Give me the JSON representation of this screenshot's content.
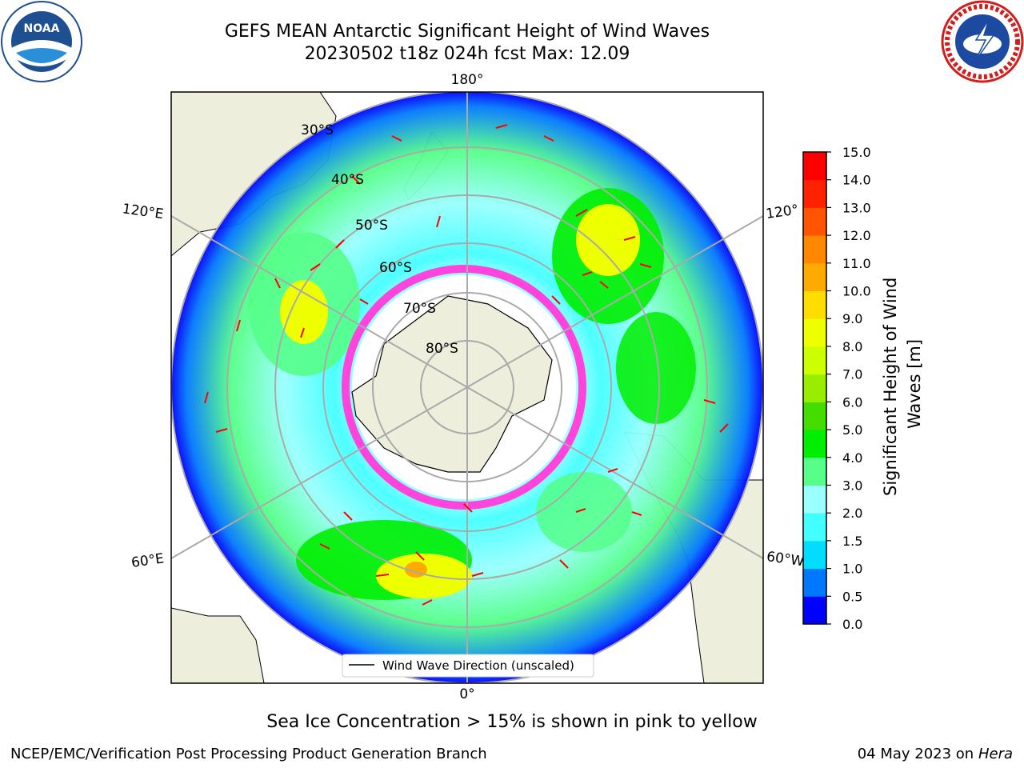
{
  "title": {
    "line1": "GEFS MEAN Antarctic Significant Height of Wind Waves",
    "line2": "20230502 t18z 024h fcst   Max: 12.09"
  },
  "map": {
    "projection": "south-polar-stereographic",
    "longitude_labels": [
      "180°",
      "120°E",
      "120°",
      "60°E",
      "60°W",
      "0°"
    ],
    "latitude_labels": [
      "30°S",
      "40°S",
      "50°S",
      "60°S",
      "70°S",
      "80°S"
    ],
    "legend": "Wind Wave Direction (unscaled)",
    "colors": {
      "land": "#eeeedc",
      "sea_ice": "#ff44dd",
      "arrows": "#ff0000"
    }
  },
  "colorbar": {
    "label": "Significant Height of Wind Waves [m]",
    "ticks": [
      "0.0",
      "0.5",
      "1.0",
      "1.5",
      "2.0",
      "3.0",
      "4.0",
      "5.0",
      "6.0",
      "7.0",
      "8.0",
      "9.0",
      "10.0",
      "11.0",
      "12.0",
      "13.0",
      "14.0",
      "15.0"
    ],
    "colors": [
      "#0000ff",
      "#0077ff",
      "#00ddff",
      "#44ffff",
      "#99ffff",
      "#55ff88",
      "#00ee00",
      "#44dd00",
      "#99ee00",
      "#ccff00",
      "#eeff00",
      "#ffdd00",
      "#ffaa00",
      "#ff8800",
      "#ff5500",
      "#ff2200",
      "#ff0000"
    ]
  },
  "caption": "Sea Ice Concentration > 15% is shown in pink to yellow",
  "footer": {
    "left": "NCEP/EMC/Verification Post Processing Product Generation Branch",
    "right_date": "04 May 2023 on",
    "right_host": "Hera"
  }
}
